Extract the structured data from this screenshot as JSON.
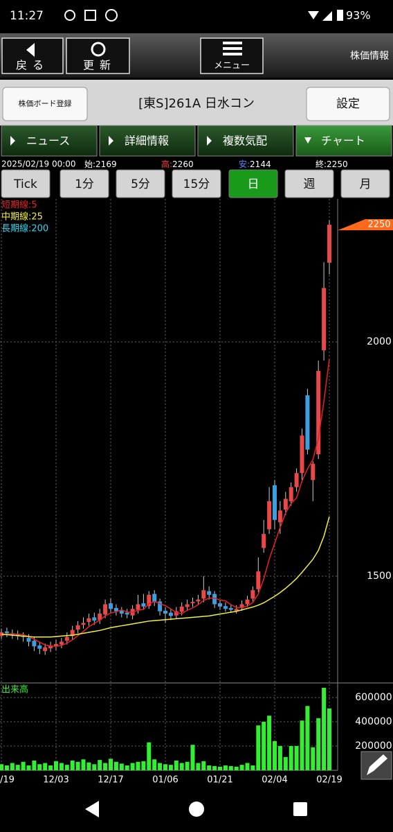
{
  "status_bar": {
    "time": "11:27",
    "battery": "93%"
  },
  "toolbar": {
    "back": "戻る",
    "refresh": "更新",
    "menu": "メニュー",
    "title": "株価情報"
  },
  "stock_bar": {
    "register": "株価ボード登録",
    "name": "[東S]261A 日水コン",
    "settings": "設定"
  },
  "tabs": [
    "ニュース",
    "詳細情報",
    "複数気配",
    "チャート"
  ],
  "info": {
    "date": "2025/02/19 00:00",
    "open": "始:",
    "high": "高:",
    "low": "安:",
    "close": "終:"
  },
  "periods": [
    "Tick",
    "1分",
    "5分",
    "15分",
    "日",
    "週",
    "月"
  ],
  "chart_data": {
    "type": "candlestick",
    "categories": [
      "/19",
      null,
      null,
      null,
      null,
      null,
      null,
      null,
      null,
      null,
      "12/03",
      null,
      null,
      null,
      null,
      null,
      null,
      null,
      null,
      null,
      "12/17",
      null,
      null,
      null,
      null,
      null,
      null,
      null,
      null,
      null,
      "01/06",
      null,
      null,
      null,
      null,
      null,
      null,
      null,
      null,
      null,
      "01/21",
      null,
      null,
      null,
      null,
      null,
      null,
      null,
      null,
      null,
      "02/04",
      null,
      null,
      null,
      null,
      null,
      null,
      null,
      null,
      null,
      "02/19"
    ],
    "open": [
      1372,
      1382,
      1378,
      1376,
      1372,
      1368,
      1362,
      1352,
      1340,
      1346,
      1350,
      1354,
      1362,
      1372,
      1386,
      1396,
      1402,
      1412,
      1406,
      1418,
      1442,
      1432,
      1426,
      1422,
      1416,
      1428,
      1442,
      1436,
      1462,
      1446,
      1426,
      1422,
      1416,
      1424,
      1434,
      1442,
      1446,
      1452,
      1468,
      1462,
      1442,
      1436,
      1432,
      1426,
      1432,
      1440,
      1452,
      1472,
      1560,
      1600,
      1694,
      1615,
      1642,
      1660,
      1690,
      1720,
      1886,
      1705,
      1760,
      1982,
      2169
    ],
    "high": [
      1388,
      1390,
      1386,
      1384,
      1380,
      1376,
      1370,
      1360,
      1356,
      1360,
      1364,
      1368,
      1380,
      1394,
      1404,
      1412,
      1420,
      1422,
      1430,
      1450,
      1452,
      1440,
      1434,
      1430,
      1438,
      1460,
      1462,
      1468,
      1470,
      1452,
      1434,
      1430,
      1434,
      1444,
      1450,
      1454,
      1460,
      1500,
      1478,
      1468,
      1450,
      1444,
      1440,
      1438,
      1448,
      1458,
      1478,
      1540,
      1620,
      1690,
      1705,
      1660,
      1680,
      1700,
      1730,
      1815,
      1900,
      1745,
      1960,
      2170,
      2260
    ],
    "low": [
      1366,
      1370,
      1366,
      1364,
      1360,
      1350,
      1340,
      1334,
      1332,
      1338,
      1342,
      1346,
      1354,
      1364,
      1378,
      1388,
      1394,
      1396,
      1398,
      1410,
      1422,
      1416,
      1412,
      1410,
      1408,
      1420,
      1428,
      1430,
      1436,
      1416,
      1400,
      1406,
      1410,
      1416,
      1426,
      1434,
      1438,
      1444,
      1450,
      1432,
      1428,
      1424,
      1422,
      1420,
      1426,
      1434,
      1446,
      1466,
      1550,
      1590,
      1600,
      1590,
      1630,
      1650,
      1680,
      1700,
      1760,
      1660,
      1750,
      1960,
      2144
    ],
    "close": [
      1380,
      1378,
      1375,
      1372,
      1370,
      1360,
      1350,
      1345,
      1348,
      1352,
      1355,
      1360,
      1370,
      1385,
      1395,
      1400,
      1410,
      1405,
      1420,
      1440,
      1430,
      1425,
      1420,
      1418,
      1430,
      1440,
      1435,
      1460,
      1445,
      1425,
      1420,
      1415,
      1425,
      1435,
      1440,
      1445,
      1450,
      1470,
      1460,
      1440,
      1435,
      1430,
      1428,
      1430,
      1440,
      1450,
      1470,
      1510,
      1590,
      1660,
      1620,
      1640,
      1665,
      1690,
      1720,
      1800,
      1770,
      1740,
      1938,
      2115,
      2250
    ],
    "up_color": "#e84848",
    "down_color": "#3a9ee0",
    "last_marker_color": "#ff6a1a",
    "ylim": [
      1272,
      2305
    ],
    "yticks": [
      1500,
      2000
    ],
    "grid": true,
    "series": [
      {
        "name": "短期線:5",
        "color": "#e8202a",
        "values": [
          1375,
          1376,
          1377,
          1376,
          1375,
          1371,
          1365,
          1359,
          1353,
          1351,
          1350,
          1352,
          1357,
          1364,
          1373,
          1382,
          1392,
          1399,
          1406,
          1415,
          1421,
          1424,
          1428,
          1423,
          1423,
          1427,
          1429,
          1441,
          1446,
          1441,
          1437,
          1430,
          1422,
          1420,
          1427,
          1432,
          1439,
          1448,
          1453,
          1453,
          1449,
          1447,
          1439,
          1433,
          1433,
          1436,
          1444,
          1462,
          1494,
          1536,
          1570,
          1604,
          1635,
          1655,
          1667,
          1703,
          1729,
          1749,
          1794,
          1873,
          1963
        ]
      },
      {
        "name": "中期線:25",
        "color": "#f4f040",
        "values": [
          1376,
          1375,
          1374,
          1373,
          1372,
          1371,
          1370,
          1370,
          1370,
          1370,
          1371,
          1372,
          1373,
          1374,
          1376,
          1378,
          1380,
          1382,
          1384,
          1387,
          1390,
          1392,
          1394,
          1396,
          1398,
          1400,
          1402,
          1404,
          1405,
          1406,
          1407,
          1408,
          1409,
          1410,
          1411,
          1412,
          1413,
          1414,
          1415,
          1417,
          1419,
          1421,
          1423,
          1425,
          1428,
          1431,
          1434,
          1438,
          1443,
          1450,
          1457,
          1465,
          1474,
          1484,
          1495,
          1508,
          1522,
          1536,
          1555,
          1585,
          1627
        ]
      },
      {
        "name": "長期線:200",
        "color": "#30d8f0"
      }
    ],
    "volume": {
      "label": "出来高",
      "color": "#33ee33",
      "ylim": [
        0,
        720000
      ],
      "yticks": [
        200000,
        400000,
        600000
      ],
      "values": [
        50000,
        40000,
        60000,
        45000,
        70000,
        40000,
        80000,
        50000,
        60000,
        40000,
        75000,
        60000,
        45000,
        80000,
        70000,
        90000,
        65000,
        50000,
        85000,
        60000,
        95000,
        70000,
        55000,
        40000,
        60000,
        70000,
        75000,
        230000,
        90000,
        60000,
        50000,
        45000,
        80000,
        60000,
        70000,
        210000,
        60000,
        75000,
        40000,
        35000,
        30000,
        40000,
        35000,
        30000,
        45000,
        60000,
        40000,
        370000,
        400000,
        450000,
        240000,
        200000,
        110000,
        200000,
        200000,
        410000,
        530000,
        190000,
        430000,
        680000,
        510000
      ]
    }
  }
}
